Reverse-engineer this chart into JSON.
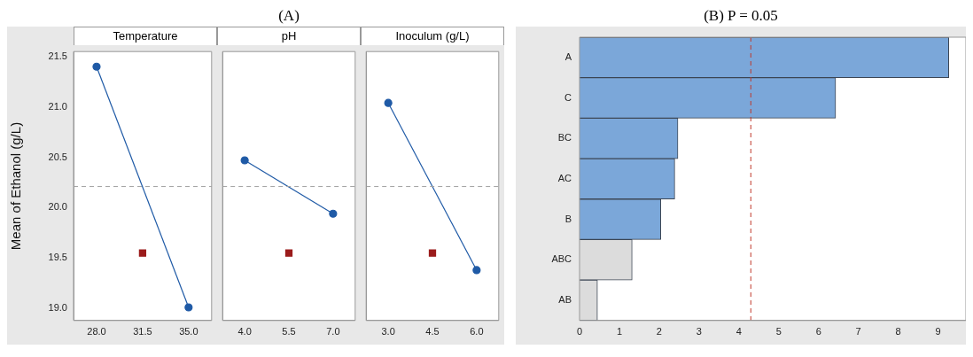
{
  "chart_data": [
    {
      "type": "line",
      "subtitle": "Temperature",
      "ylabel": "Mean of Ethanol (g/L)",
      "xlim": [
        26.25,
        36.75
      ],
      "xticks": [
        {
          "value": 28,
          "label": "28.0"
        },
        {
          "value": 31.5,
          "label": "31.5"
        },
        {
          "value": 35,
          "label": "35.0"
        }
      ],
      "ylim": [
        18.88,
        21.55
      ],
      "yticks": [
        {
          "value": 19,
          "label": "19.0"
        },
        {
          "value": 19.5,
          "label": "19.5"
        },
        {
          "value": 20,
          "label": "20.0"
        },
        {
          "value": 20.5,
          "label": "20.5"
        },
        {
          "value": 21,
          "label": "21.0"
        },
        {
          "value": 21.5,
          "label": "21.5"
        }
      ],
      "legend": false,
      "ref_lines": [
        {
          "axis": "y",
          "value": 20.21,
          "color": "#a0a0a0",
          "line_style": "dashed"
        }
      ],
      "series": [
        {
          "type": "line",
          "x": [
            28,
            35
          ],
          "values": [
            21.4,
            19.01
          ],
          "color": "#1f5aa6",
          "marker": "circle"
        },
        {
          "type": "scatter",
          "x": [
            31.5
          ],
          "values": [
            19.55
          ],
          "color": "#9b1c1c",
          "marker": "square"
        }
      ]
    },
    {
      "type": "line",
      "title": "(A)",
      "subtitle": "pH",
      "tick_labels": "x",
      "xlim": [
        3.25,
        7.75
      ],
      "xticks": [
        {
          "value": 4,
          "label": "4.0"
        },
        {
          "value": 5.5,
          "label": "5.5"
        },
        {
          "value": 7,
          "label": "7.0"
        }
      ],
      "ylim": [
        18.88,
        21.55
      ],
      "legend": false,
      "ref_lines": [
        {
          "axis": "y",
          "value": 20.21,
          "color": "#a0a0a0",
          "line_style": "dashed"
        }
      ],
      "series": [
        {
          "type": "line",
          "x": [
            4,
            7
          ],
          "values": [
            20.47,
            19.94
          ],
          "color": "#1f5aa6",
          "marker": "circle"
        },
        {
          "type": "scatter",
          "x": [
            5.5
          ],
          "values": [
            19.55
          ],
          "color": "#9b1c1c",
          "marker": "square"
        }
      ]
    },
    {
      "type": "line",
      "subtitle": "Inoculum (g/L)",
      "tick_labels": "x",
      "xlim": [
        2.25,
        6.75
      ],
      "xticks": [
        {
          "value": 3,
          "label": "3.0"
        },
        {
          "value": 4.5,
          "label": "4.5"
        },
        {
          "value": 6,
          "label": "6.0"
        }
      ],
      "ylim": [
        18.88,
        21.55
      ],
      "legend": false,
      "ref_lines": [
        {
          "axis": "y",
          "value": 20.21,
          "color": "#a0a0a0",
          "line_style": "dashed"
        }
      ],
      "series": [
        {
          "type": "line",
          "x": [
            3,
            6
          ],
          "values": [
            21.04,
            19.38
          ],
          "color": "#1f5aa6",
          "marker": "circle"
        },
        {
          "type": "scatter",
          "x": [
            4.5
          ],
          "values": [
            19.55
          ],
          "color": "#9b1c1c",
          "marker": "square"
        }
      ]
    },
    {
      "type": "bar",
      "title": "(B) P = 0.05",
      "orientation": "horizontal",
      "categories": [
        "A",
        "C",
        "BC",
        "AC",
        "B",
        "ABC",
        "AB"
      ],
      "values": [
        9.27,
        6.43,
        2.47,
        2.39,
        2.04,
        1.32,
        0.45
      ],
      "colors": [
        "#7ba7d9",
        "#7ba7d9",
        "#7ba7d9",
        "#7ba7d9",
        "#7ba7d9",
        "#dcdcdc",
        "#dcdcdc"
      ],
      "xlim": [
        0,
        9.7
      ],
      "xticks": [
        0,
        1,
        2,
        3,
        4,
        5,
        6,
        7,
        8,
        9
      ],
      "legend": false,
      "ref_lines": [
        {
          "axis": "x",
          "value": 4.3,
          "color": "#c0392b",
          "line_style": "dashed"
        }
      ]
    }
  ]
}
